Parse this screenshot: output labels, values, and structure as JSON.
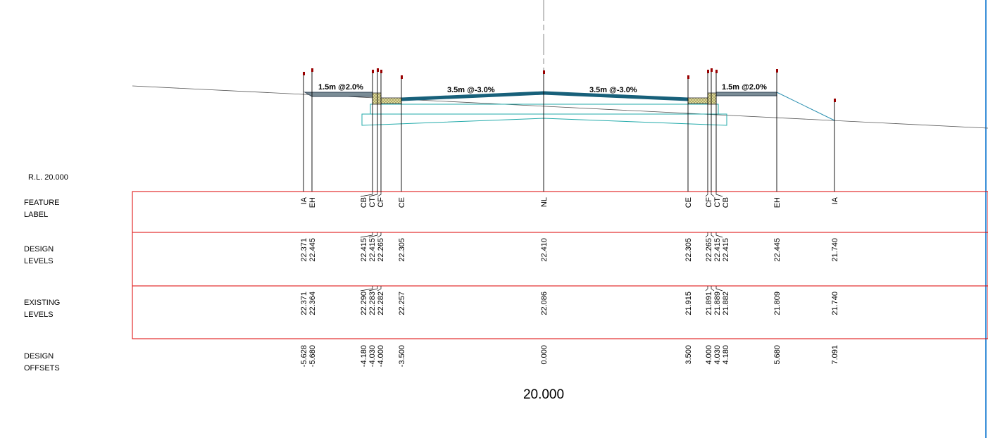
{
  "annotations": [
    "1.5m @2.0%",
    "3.5m @-3.0%",
    "3.5m @-3.0%",
    "1.5m @2.0%"
  ],
  "datum": "R.L. 20.000",
  "row_labels": [
    [
      "FEATURE",
      "LABEL"
    ],
    [
      "DESIGN",
      "LEVELS"
    ],
    [
      "EXISTING",
      "LEVELS"
    ],
    [
      "DESIGN",
      "OFFSETS"
    ]
  ],
  "features": [
    {
      "label": "IA",
      "design_level": "22.371",
      "existing_level": "22.371",
      "offset": "-5.628"
    },
    {
      "label": "EH",
      "design_level": "22.445",
      "existing_level": "22.364",
      "offset": "-5.680"
    },
    {
      "label": "CB",
      "design_level": "22.415",
      "existing_level": "22.290",
      "offset": "-4.180"
    },
    {
      "label": "CT",
      "design_level": "22.415",
      "existing_level": "22.283",
      "offset": "-4.030"
    },
    {
      "label": "CF",
      "design_level": "22.265",
      "existing_level": "22.282",
      "offset": "-4.000"
    },
    {
      "label": "CE",
      "design_level": "22.305",
      "existing_level": "22.257",
      "offset": "-3.500"
    },
    {
      "label": "NL",
      "design_level": "22.410",
      "existing_level": "22.086",
      "offset": "0.000"
    },
    {
      "label": "CE",
      "design_level": "22.305",
      "existing_level": "21.915",
      "offset": "3.500"
    },
    {
      "label": "CF",
      "design_level": "22.265",
      "existing_level": "21.891",
      "offset": "4.000"
    },
    {
      "label": "CT",
      "design_level": "22.415",
      "existing_level": "21.889",
      "offset": "4.030"
    },
    {
      "label": "CB",
      "design_level": "22.415",
      "existing_level": "21.882",
      "offset": "4.180"
    },
    {
      "label": "EH",
      "design_level": "22.445",
      "existing_level": "21.809",
      "offset": "5.680"
    },
    {
      "label": "IA",
      "design_level": "21.740",
      "existing_level": "21.740",
      "offset": "7.091"
    }
  ],
  "chainage": "20.000"
}
